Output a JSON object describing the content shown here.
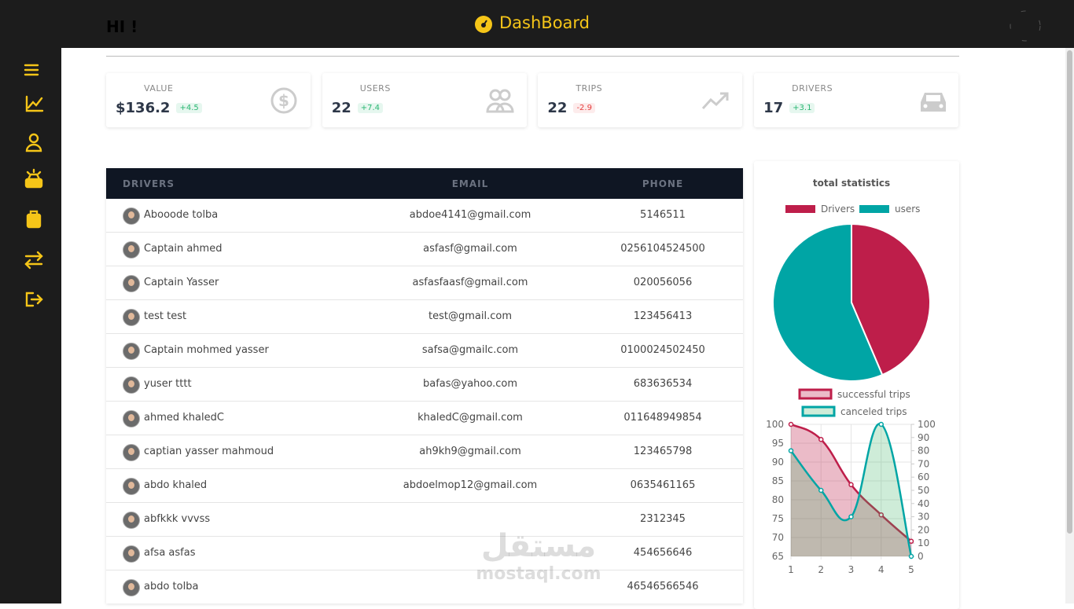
{
  "header": {
    "greeting": "HI !",
    "title": "DashBoard"
  },
  "stats": [
    {
      "label": "VALUE",
      "value": "$136.2",
      "change": "+4.5"
    },
    {
      "label": "USERS",
      "value": "22",
      "change": "+7.4"
    },
    {
      "label": "TRIPS",
      "value": "22",
      "change": "-2.9"
    },
    {
      "label": "DRIVERS",
      "value": "17",
      "change": "+3.1"
    }
  ],
  "table": {
    "columns": [
      "DRIVERS",
      "EMAIL",
      "PHONE"
    ],
    "rows": [
      [
        "Abooode tolba",
        "abdoe4141@gmail.com",
        "5146511"
      ],
      [
        "Captain ahmed",
        "asfasf@gmail.com",
        "0256104524500"
      ],
      [
        "Captain Yasser",
        "asfasfaasf@gmail.com",
        "020056056"
      ],
      [
        "test test",
        "test@gmail.com",
        "123456413"
      ],
      [
        "Captain mohmed yasser",
        "safsa@gmailc.com",
        "0100024502450"
      ],
      [
        "yuser tttt",
        "bafas@yahoo.com",
        "683636534"
      ],
      [
        "ahmed khaledC",
        "khaledC@gmail.com",
        "011648949854"
      ],
      [
        "captian yasser mahmoud",
        "ah9kh9@gmail.com",
        "123465798"
      ],
      [
        "abdo khaled",
        "abdoelmop12@gmail.com",
        "0635461165"
      ],
      [
        "abfkkk vvvss",
        "",
        "2312345"
      ],
      [
        "afsa asfas",
        "",
        "454656646"
      ],
      [
        "abdo tolba",
        "",
        "46546566546"
      ]
    ]
  },
  "watermark": {
    "arabic": "مستقل",
    "latin": "mostaql.com"
  },
  "chart_data": [
    {
      "type": "pie",
      "title": "total statistics",
      "categories": [
        "Drivers",
        "users"
      ],
      "values": [
        17,
        22
      ],
      "colors": [
        "#be1e4a",
        "#00a5a5"
      ]
    },
    {
      "type": "line",
      "x": [
        1,
        2,
        3,
        4,
        5
      ],
      "xlim": [
        1,
        5
      ],
      "xticks": [
        1,
        2,
        3,
        4,
        5
      ],
      "ylim": [
        65,
        100
      ],
      "yticks": [
        65,
        70,
        75,
        80,
        85,
        90,
        95,
        100
      ],
      "y2lim": [
        0,
        100
      ],
      "y2ticks": [
        0,
        10,
        20,
        30,
        40,
        50,
        60,
        70,
        80,
        90,
        100
      ],
      "grid": true,
      "series": [
        {
          "name": "successful trips",
          "color": "#be1e4a",
          "fill": "rgba(190,30,74,0.3)",
          "values": [
            100,
            96,
            84,
            76,
            69
          ]
        },
        {
          "name": "canceled trips",
          "color": "#00a5a5",
          "fill": "rgba(60,180,100,0.25)",
          "axis": "y2",
          "values": [
            80,
            50,
            30,
            100,
            0
          ]
        }
      ]
    }
  ]
}
